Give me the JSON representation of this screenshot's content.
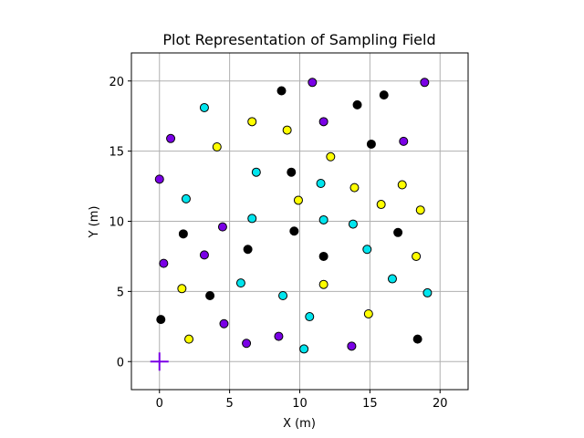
{
  "chart_data": {
    "type": "scatter",
    "title": "Plot Representation of Sampling Field",
    "xlabel": "X (m)",
    "ylabel": "Y (m)",
    "xlim": [
      -2,
      22
    ],
    "ylim": [
      -2,
      22
    ],
    "xticks": [
      0,
      5,
      10,
      15,
      20
    ],
    "yticks": [
      0,
      5,
      10,
      15,
      20
    ],
    "grid": true,
    "colors": {
      "black": "#000000",
      "cyan": "#00e5ee",
      "yellow": "#ffff00",
      "purple": "#7a00e6",
      "marker_edge": "#000000",
      "origin_marker": "#7a00e6"
    },
    "origin_marker": {
      "shape": "plus",
      "x": 0,
      "y": 0
    },
    "series": [
      {
        "color_key": "black",
        "x": [
          8.7,
          14.1,
          16.0,
          15.1,
          9.4,
          1.7,
          6.3,
          9.6,
          11.7,
          17.0,
          3.6,
          0.1,
          18.4
        ],
        "y": [
          19.3,
          18.3,
          19.0,
          15.5,
          13.5,
          9.1,
          8.0,
          9.3,
          7.5,
          9.2,
          4.7,
          3.0,
          1.6
        ]
      },
      {
        "color_key": "cyan",
        "x": [
          3.2,
          6.9,
          11.5,
          1.9,
          6.6,
          11.7,
          13.8,
          14.8,
          5.8,
          8.8,
          16.6,
          19.1,
          10.7,
          10.3
        ],
        "y": [
          18.1,
          13.5,
          12.7,
          11.6,
          10.2,
          10.1,
          9.8,
          8.0,
          5.6,
          4.7,
          5.9,
          4.9,
          3.2,
          0.9
        ]
      },
      {
        "color_key": "yellow",
        "x": [
          6.6,
          9.1,
          4.1,
          12.2,
          9.9,
          13.9,
          15.8,
          17.3,
          18.6,
          18.3,
          1.6,
          11.7,
          14.9,
          2.1
        ],
        "y": [
          17.1,
          16.5,
          15.3,
          14.6,
          11.5,
          12.4,
          11.2,
          12.6,
          10.8,
          7.5,
          5.2,
          5.5,
          3.4,
          1.6
        ]
      },
      {
        "color_key": "purple",
        "x": [
          10.9,
          18.9,
          11.7,
          0.8,
          17.4,
          0.0,
          4.5,
          0.3,
          3.2,
          4.6,
          6.2,
          8.5,
          13.7
        ],
        "y": [
          19.9,
          19.9,
          17.1,
          15.9,
          15.7,
          13.0,
          9.6,
          7.0,
          7.6,
          2.7,
          1.3,
          1.8,
          1.1
        ]
      }
    ]
  }
}
